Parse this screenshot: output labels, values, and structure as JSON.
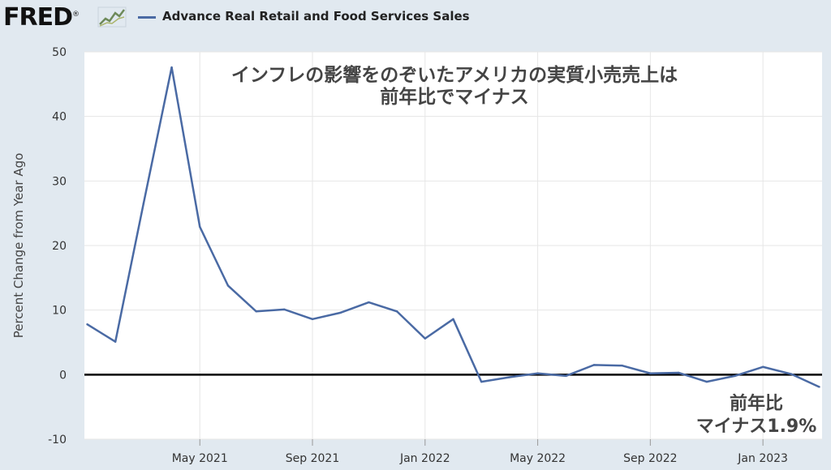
{
  "header": {
    "logo_text": "FRED",
    "logo_mark": "®",
    "logo_icon": "trend-line-chart-icon"
  },
  "colors": {
    "series": "#4a6aa4",
    "zero_line": "#000000",
    "background": "#e1e9f0",
    "plot_background": "#ffffff",
    "grid": "#e6e6e6"
  },
  "chart_data": {
    "type": "line",
    "ylabel": "Percent Change from Year Ago",
    "xlabel": "",
    "ylim": [
      -10,
      50
    ],
    "yticks": [
      -10,
      0,
      10,
      20,
      30,
      40,
      50
    ],
    "xticks": [
      "May 2021",
      "Sep 2021",
      "Jan 2022",
      "May 2022",
      "Sep 2022",
      "Jan 2023"
    ],
    "grid": true,
    "legend": "top-left",
    "annotation_title_line1": "インフレの影響をのぞいたアメリカの実質小売売上は",
    "annotation_title_line2": "前年比でマイナス",
    "annotation_corner_line1": "前年比",
    "annotation_corner_line2": "マイナス1.9%",
    "series": [
      {
        "name": "Advance Real Retail and Food Services Sales",
        "x": [
          "2021-01",
          "2021-02",
          "2021-03",
          "2021-04",
          "2021-05",
          "2021-06",
          "2021-07",
          "2021-08",
          "2021-09",
          "2021-10",
          "2021-11",
          "2021-12",
          "2022-01",
          "2022-02",
          "2022-03",
          "2022-04",
          "2022-05",
          "2022-06",
          "2022-07",
          "2022-08",
          "2022-09",
          "2022-10",
          "2022-11",
          "2022-12",
          "2023-01",
          "2023-02",
          "2023-03"
        ],
        "values": [
          7.8,
          5.1,
          26.5,
          47.6,
          22.9,
          13.8,
          9.8,
          10.1,
          8.6,
          9.6,
          11.2,
          9.8,
          5.6,
          8.6,
          -1.1,
          -0.4,
          0.2,
          -0.2,
          1.5,
          1.4,
          0.2,
          0.3,
          -1.1,
          -0.2,
          1.2,
          0.1,
          -1.9
        ]
      }
    ]
  }
}
